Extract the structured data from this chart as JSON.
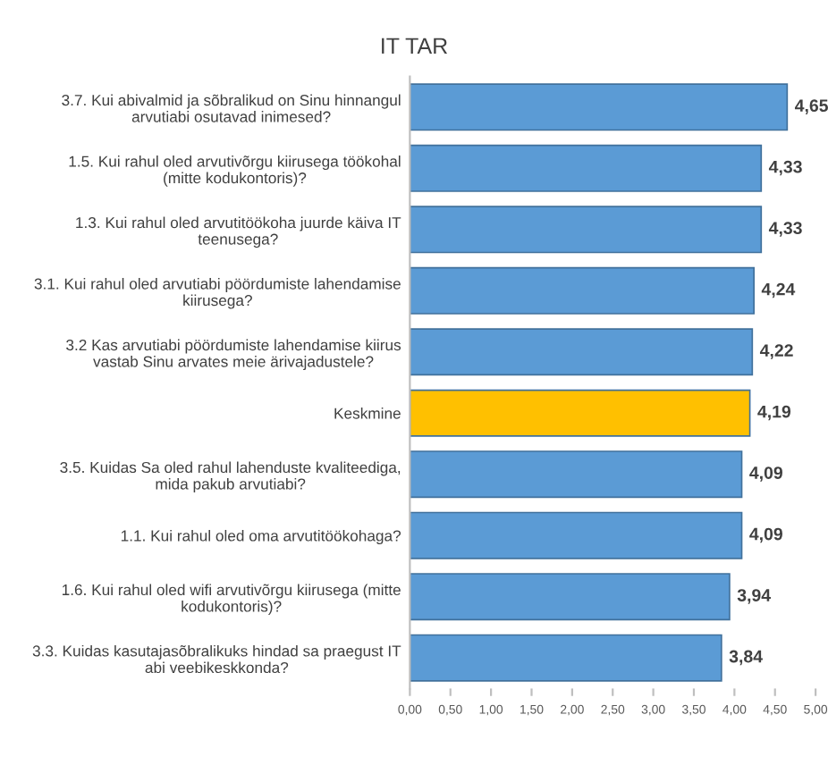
{
  "chart_data": {
    "type": "bar",
    "orientation": "horizontal",
    "title": "IT TAR",
    "categories": [
      "3.7. Kui abivalmid ja sõbralikud on Sinu hinnangul\narvutiabi osutavad inimesed?",
      "1.5. Kui rahul oled arvutivõrgu kiirusega töökohal\n(mitte kodukontoris)?",
      "1.3. Kui rahul oled arvutitöökoha juurde käiva IT\nteenusega?",
      "3.1. Kui rahul oled arvutiabi pöördumiste lahendamise\nkiirusega?",
      "3.2 Kas arvutiabi pöördumiste lahendamise kiirus\nvastab Sinu arvates meie ärivajadustele?",
      "Keskmine",
      "3.5. Kuidas Sa oled rahul lahenduste kvaliteediga,\nmida pakub arvutiabi?",
      "1.1. Kui rahul oled oma arvutitöökohaga?",
      "1.6. Kui rahul oled wifi arvutivõrgu kiirusega (mitte\nkodukontoris)?",
      "3.3. Kuidas kasutajasõbralikuks hindad sa praegust IT\nabi veebikeskkonda?"
    ],
    "values": [
      4.65,
      4.33,
      4.33,
      4.24,
      4.22,
      4.19,
      4.09,
      4.09,
      3.94,
      3.84
    ],
    "value_labels": [
      "4,65",
      "4,33",
      "4,33",
      "4,24",
      "4,22",
      "4,19",
      "4,09",
      "4,09",
      "3,94",
      "3,84"
    ],
    "colors": [
      "#5b9bd5",
      "#5b9bd5",
      "#5b9bd5",
      "#5b9bd5",
      "#5b9bd5",
      "#ffc000",
      "#5b9bd5",
      "#5b9bd5",
      "#5b9bd5",
      "#5b9bd5"
    ],
    "xlim": [
      0,
      5
    ],
    "xticks": [
      {
        "value": 0,
        "label": "0,00"
      },
      {
        "value": 0.5,
        "label": "0,50"
      },
      {
        "value": 1,
        "label": "1,00"
      },
      {
        "value": 1.5,
        "label": "1,50"
      },
      {
        "value": 2,
        "label": "2,00"
      },
      {
        "value": 2.5,
        "label": "2,50"
      },
      {
        "value": 3,
        "label": "3,00"
      },
      {
        "value": 3.5,
        "label": "3,50"
      },
      {
        "value": 4,
        "label": "4,00"
      },
      {
        "value": 4.5,
        "label": "4,50"
      },
      {
        "value": 5,
        "label": "5,00"
      }
    ],
    "grid": false,
    "legend": false
  }
}
